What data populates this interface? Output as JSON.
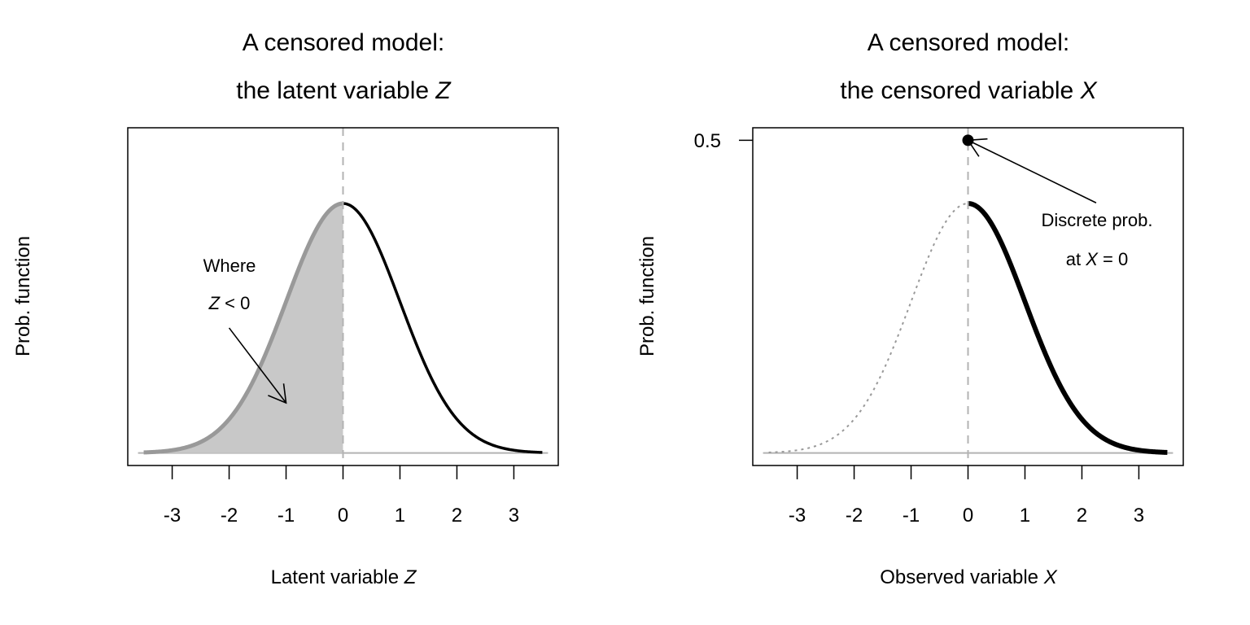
{
  "chart_data": [
    {
      "type": "line",
      "title_line1": "A censored model:",
      "title_line2_prefix": "the latent variable ",
      "title_line2_var": "Z",
      "xlabel_prefix": "Latent variable ",
      "xlabel_var": "Z",
      "ylabel": "Prob. function",
      "xlim": [
        -3.5,
        3.5
      ],
      "ylim": [
        0,
        0.5
      ],
      "xticks": [
        -3,
        -2,
        -1,
        0,
        1,
        2,
        3
      ],
      "xtick_labels": [
        "-3",
        "-2",
        "-1",
        "0",
        "1",
        "2",
        "3"
      ],
      "yticks": [],
      "curve": {
        "distribution": "normal",
        "mean": 0,
        "sd": 1,
        "x_range": [
          -3.5,
          3.5
        ]
      },
      "shaded_region": {
        "from": -3.5,
        "to": 0,
        "color": "#c8c8c8",
        "curve_color": "#999999"
      },
      "right_curve_color": "#000000",
      "reference_line_x": 0,
      "annotation": {
        "line1": "Where",
        "line2_var": "Z",
        "line2_rest": " < 0",
        "text_x": -2,
        "text_y1": 0.3,
        "text_y2": 0.243,
        "arrow_from": [
          -2,
          0.2
        ],
        "arrow_to": [
          -1,
          0.08
        ]
      }
    },
    {
      "type": "line",
      "title_line1": "A censored model:",
      "title_line2_prefix": "the censored variable ",
      "title_line2_var": "X",
      "xlabel_prefix": "Observed variable ",
      "xlabel_var": "X",
      "ylabel": "Prob. function",
      "xlim": [
        -3.5,
        3.5
      ],
      "ylim": [
        0,
        0.5
      ],
      "xticks": [
        -3,
        -2,
        -1,
        0,
        1,
        2,
        3
      ],
      "xtick_labels": [
        "-3",
        "-2",
        "-1",
        "0",
        "1",
        "2",
        "3"
      ],
      "yticks": [
        0.5
      ],
      "ytick_labels": [
        "0.5"
      ],
      "curve": {
        "distribution": "normal",
        "mean": 0,
        "sd": 1,
        "x_range": [
          -3.5,
          3.5
        ]
      },
      "censored_part": {
        "from": -3.5,
        "to": 0,
        "style": "dotted",
        "color": "#999999"
      },
      "observed_part": {
        "from": 0,
        "to": 3.5,
        "style": "thick",
        "color": "#000000"
      },
      "point_mass": {
        "x": 0,
        "y": 0.5
      },
      "reference_line_x": 0,
      "annotation": {
        "line1": "Discrete prob.",
        "line2_prefix": "at ",
        "line2_var": "X",
        "line2_rest": " = 0",
        "text_x": 2.25,
        "text_y1": 0.373,
        "text_y2": 0.31,
        "arrow_from": [
          2.25,
          0.4
        ],
        "arrow_to": [
          0,
          0.5
        ]
      }
    }
  ]
}
